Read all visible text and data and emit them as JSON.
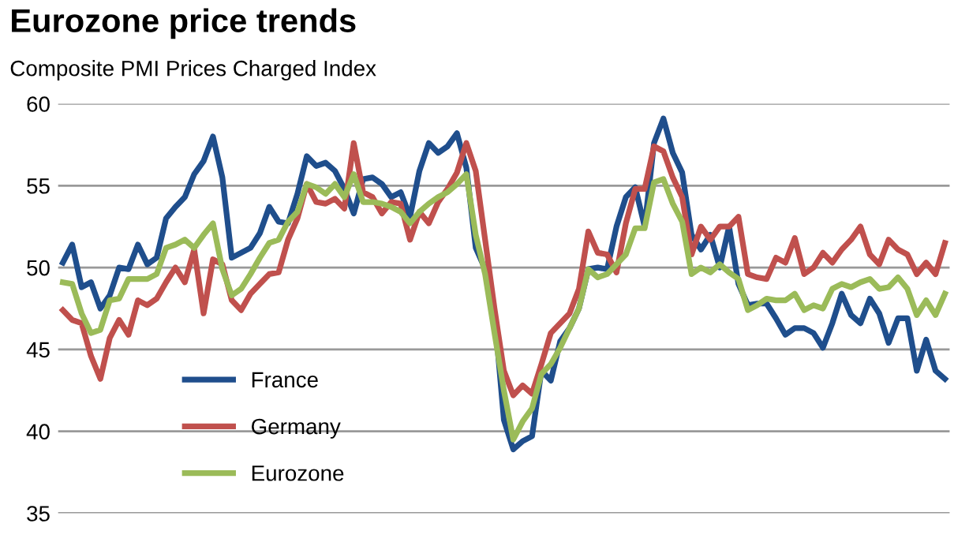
{
  "chart_data": {
    "type": "line",
    "title": "Eurozone price trends",
    "subtitle": "Composite PMI Prices Charged Index",
    "categories": [
      null,
      null,
      null,
      null,
      null,
      null,
      null,
      null,
      null,
      null,
      null,
      null,
      null,
      null,
      null,
      null,
      null,
      null,
      null,
      null,
      null,
      null,
      null,
      null,
      null,
      null,
      null,
      null,
      null,
      null,
      null,
      null,
      null,
      null,
      null,
      null,
      null,
      null,
      null,
      null,
      null,
      null,
      null,
      null,
      null,
      null,
      null,
      null,
      null,
      null,
      null,
      null,
      null,
      null,
      null,
      null,
      null,
      null,
      null,
      null,
      null,
      null,
      null,
      null,
      null,
      null,
      null,
      null,
      null,
      null,
      null,
      null,
      null,
      null,
      null,
      null,
      null,
      null,
      null,
      null,
      null,
      null,
      null,
      null,
      null,
      null,
      null,
      null,
      null,
      null,
      null,
      null,
      null,
      null,
      null
    ],
    "series": [
      {
        "name": "France",
        "color": "#1f4e8c",
        "values": [
          50.3,
          51.4,
          48.8,
          49.1,
          47.5,
          48.3,
          50,
          49.9,
          51.4,
          50.2,
          50.6,
          53,
          53.7,
          54.3,
          55.7,
          56.5,
          58,
          55.5,
          50.6,
          50.9,
          51.2,
          52.1,
          53.7,
          52.8,
          52.7,
          54.5,
          56.8,
          56.2,
          56.4,
          55.9,
          54.8,
          53.3,
          55.4,
          55.5,
          55.1,
          54.3,
          54.6,
          53.1,
          55.9,
          57.6,
          57,
          57.4,
          58.2,
          56.1,
          51.2,
          49.9,
          47.2,
          40.7,
          38.9,
          39.4,
          39.7,
          43.7,
          43.1,
          45.5,
          46.3,
          47.5,
          49.9,
          50,
          49.9,
          52.5,
          54.3,
          54.9,
          52.5,
          57.6,
          59.1,
          57,
          55.8,
          52,
          51.1,
          52,
          50,
          52.5,
          49,
          47.7,
          47.8,
          47.8,
          46.9,
          45.9,
          46.3,
          46.3,
          46,
          45.1,
          46.6,
          48.4,
          47.1,
          46.6,
          48.1,
          47.2,
          45.4,
          46.9,
          46.9,
          43.7,
          45.6,
          43.7,
          43.2
        ]
      },
      {
        "name": "Germany",
        "color": "#c0504d",
        "values": [
          47.4,
          46.8,
          46.6,
          44.6,
          43.2,
          45.7,
          46.8,
          45.9,
          48,
          47.7,
          48.1,
          49.1,
          50,
          49.1,
          51.1,
          47.2,
          50.5,
          50.2,
          48,
          47.4,
          48.4,
          49,
          49.6,
          49.7,
          51.7,
          53,
          55.1,
          54,
          53.9,
          54.2,
          53.6,
          57.6,
          54.6,
          54.3,
          53.3,
          54,
          53.9,
          51.7,
          53.4,
          52.7,
          54,
          54.8,
          55.8,
          57.6,
          55.9,
          51.7,
          47.5,
          43.7,
          42.2,
          42.8,
          42.3,
          44.1,
          46,
          46.6,
          47.2,
          48.7,
          52.2,
          50.9,
          50.8,
          49.7,
          52.7,
          54.8,
          54.8,
          57.4,
          57.1,
          55.5,
          54.3,
          50.8,
          52.5,
          51.7,
          52.5,
          52.5,
          53.1,
          49.6,
          49.4,
          49.3,
          50.6,
          50.3,
          51.8,
          49.6,
          50,
          50.9,
          50.3,
          51.1,
          51.7,
          52.5,
          50.8,
          50.2,
          51.7,
          51.1,
          50.8,
          49.6,
          50.3,
          49.6,
          51.5
        ]
      },
      {
        "name": "Eurozone",
        "color": "#9bbb59",
        "values": [
          49.1,
          49,
          47.2,
          46,
          46.2,
          48,
          48.1,
          49.3,
          49.3,
          49.3,
          49.6,
          51.2,
          51.4,
          51.7,
          51.2,
          52,
          52.7,
          49.9,
          48.3,
          48.7,
          49.6,
          50.6,
          51.5,
          51.7,
          52.8,
          53.4,
          55.1,
          54.9,
          54.5,
          55.1,
          54.3,
          55.7,
          54,
          54,
          53.9,
          53.7,
          53.4,
          52.7,
          53.4,
          53.9,
          54.3,
          54.6,
          55.1,
          55.7,
          52,
          49.6,
          46,
          42.5,
          39.5,
          40.6,
          41.4,
          43.5,
          44.1,
          45.1,
          46.3,
          47.5,
          49.9,
          49.4,
          49.6,
          50.2,
          50.8,
          52.4,
          52.4,
          55.2,
          55.4,
          53.9,
          52.8,
          49.6,
          50,
          49.7,
          50.2,
          49.7,
          49.3,
          47.4,
          47.7,
          48.1,
          48,
          48,
          48.4,
          47.4,
          47.7,
          47.5,
          48.7,
          49,
          48.8,
          49.1,
          49.3,
          48.7,
          48.8,
          49.4,
          48.7,
          47.1,
          48,
          47.1,
          48.4
        ]
      }
    ],
    "ylim": [
      35,
      60
    ],
    "yticks": [
      35,
      40,
      45,
      50,
      55,
      60
    ],
    "grid": "y",
    "legend": "bottom left",
    "marker": "none",
    "line_style": "solid"
  }
}
